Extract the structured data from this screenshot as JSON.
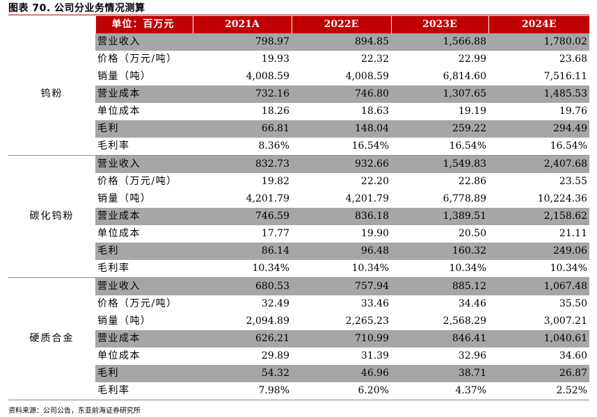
{
  "title": "图表 70. 公司分业务情况测算",
  "header": {
    "unit": "单位：百万元",
    "years": [
      "2021A",
      "2022E",
      "2023E",
      "2024E"
    ]
  },
  "segments": [
    {
      "name": "钨粉",
      "rows": [
        {
          "label": "营业收入",
          "values": [
            "798.97",
            "894.85",
            "1,566.88",
            "1,780.02"
          ]
        },
        {
          "label": "价格（万元/吨）",
          "values": [
            "19.93",
            "22.32",
            "22.99",
            "23.68"
          ]
        },
        {
          "label": "销量（吨）",
          "values": [
            "4,008.59",
            "4,008.59",
            "6,814.60",
            "7,516.11"
          ]
        },
        {
          "label": "营业成本",
          "values": [
            "732.16",
            "746.80",
            "1,307.65",
            "1,485.53"
          ]
        },
        {
          "label": "单位成本",
          "values": [
            "18.26",
            "18.63",
            "19.19",
            "19.76"
          ]
        },
        {
          "label": "毛利",
          "values": [
            "66.81",
            "148.04",
            "259.22",
            "294.49"
          ]
        },
        {
          "label": "毛利率",
          "values": [
            "8.36%",
            "16.54%",
            "16.54%",
            "16.54%"
          ]
        }
      ]
    },
    {
      "name": "碳化钨粉",
      "rows": [
        {
          "label": "营业收入",
          "values": [
            "832.73",
            "932.66",
            "1,549.83",
            "2,407.68"
          ]
        },
        {
          "label": "价格（万元/吨）",
          "values": [
            "19.82",
            "22.20",
            "22.86",
            "23.55"
          ]
        },
        {
          "label": "销量（吨）",
          "values": [
            "4,201.79",
            "4,201.79",
            "6,778.89",
            "10,224.36"
          ]
        },
        {
          "label": "营业成本",
          "values": [
            "746.59",
            "836.18",
            "1,389.51",
            "2,158.62"
          ]
        },
        {
          "label": "单位成本",
          "values": [
            "17.77",
            "19.90",
            "20.50",
            "21.11"
          ]
        },
        {
          "label": "毛利",
          "values": [
            "86.14",
            "96.48",
            "160.32",
            "249.06"
          ]
        },
        {
          "label": "毛利率",
          "values": [
            "10.34%",
            "10.34%",
            "10.34%",
            "10.34%"
          ]
        }
      ]
    },
    {
      "name": "硬质合金",
      "rows": [
        {
          "label": "营业收入",
          "values": [
            "680.53",
            "757.94",
            "885.12",
            "1,067.48"
          ]
        },
        {
          "label": "价格（万元/吨）",
          "values": [
            "32.49",
            "33.46",
            "34.46",
            "35.50"
          ]
        },
        {
          "label": "销量（吨）",
          "values": [
            "2,094.89",
            "2,265.23",
            "2,568.29",
            "3,007.21"
          ]
        },
        {
          "label": "营业成本",
          "values": [
            "626.21",
            "710.99",
            "846.41",
            "1,040.61"
          ]
        },
        {
          "label": "单位成本",
          "values": [
            "29.89",
            "31.39",
            "32.96",
            "34.60"
          ]
        },
        {
          "label": "毛利",
          "values": [
            "54.32",
            "46.96",
            "38.71",
            "26.87"
          ]
        },
        {
          "label": "毛利率",
          "values": [
            "7.98%",
            "6.20%",
            "4.37%",
            "2.52%"
          ]
        }
      ]
    }
  ],
  "source": "资料来源：公司公告，东亚前海证券研究所"
}
